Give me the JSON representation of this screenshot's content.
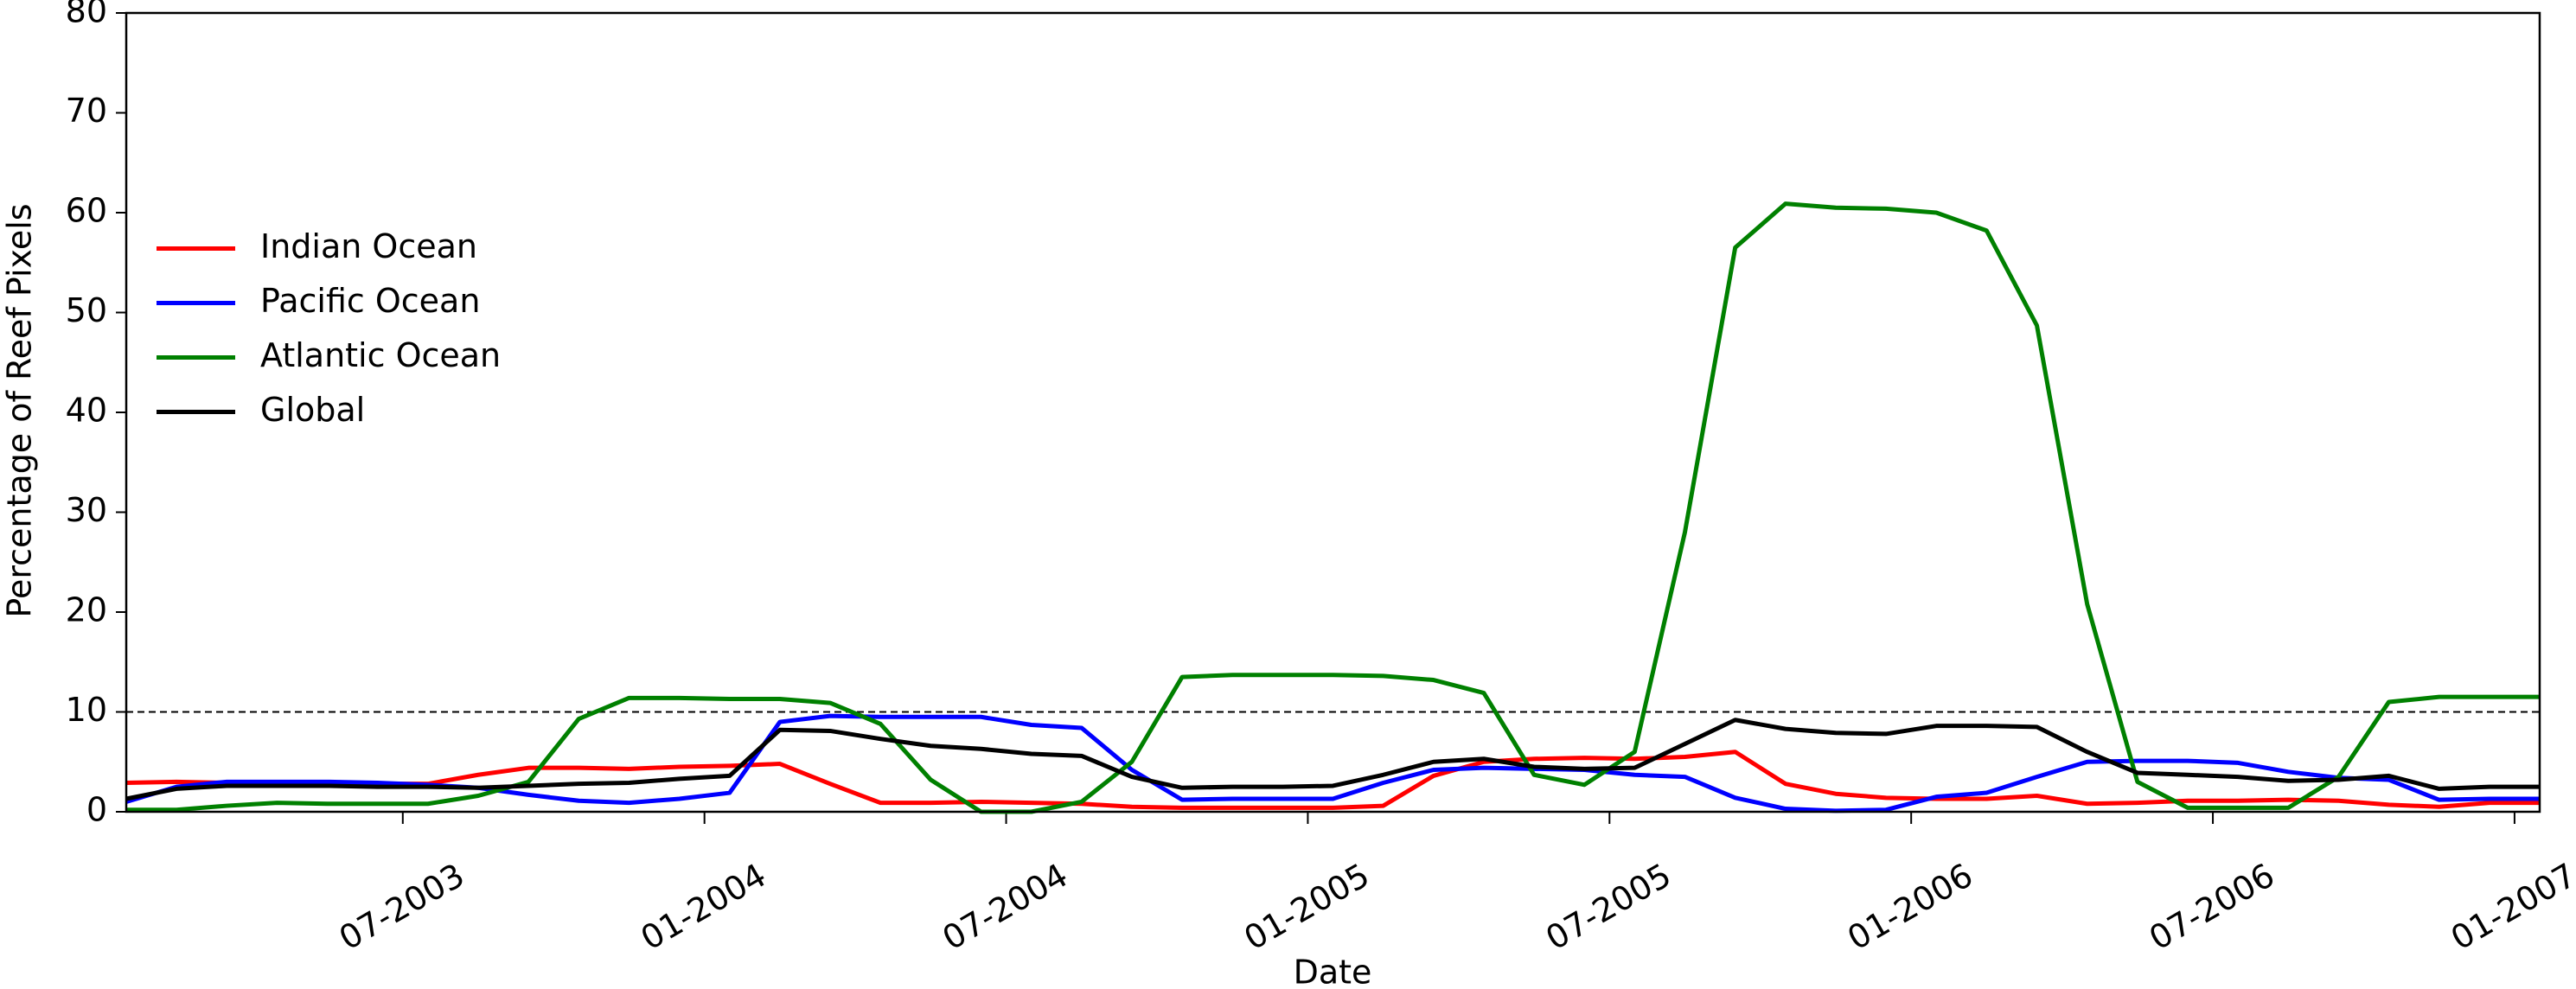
{
  "chart_data": {
    "type": "line",
    "y_label": "Percentage of Reef Pixels",
    "x_label": "Date",
    "x": [
      "01-2003",
      "02-2003",
      "03-2003",
      "04-2003",
      "05-2003",
      "06-2003",
      "07-2003",
      "08-2003",
      "09-2003",
      "10-2003",
      "11-2003",
      "12-2003",
      "01-2004",
      "02-2004",
      "03-2004",
      "04-2004",
      "05-2004",
      "06-2004",
      "07-2004",
      "08-2004",
      "09-2004",
      "10-2004",
      "11-2004",
      "12-2004",
      "01-2005",
      "02-2005",
      "03-2005",
      "04-2005",
      "05-2005",
      "06-2005",
      "07-2005",
      "08-2005",
      "09-2005",
      "10-2005",
      "11-2005",
      "12-2005",
      "01-2006",
      "02-2006",
      "03-2006",
      "04-2006",
      "05-2006",
      "06-2006",
      "07-2006",
      "08-2006",
      "09-2006",
      "10-2006",
      "11-2006",
      "12-2006",
      "01-2007"
    ],
    "series": [
      {
        "name": "Indian Ocean",
        "color": "#ff0000",
        "values": [
          2.9,
          3,
          2.9,
          2.8,
          2.8,
          2.8,
          2.8,
          3.7,
          4.4,
          4.4,
          4.3,
          4.5,
          4.6,
          4.8,
          2.8,
          0.9,
          0.9,
          1,
          0.9,
          0.8,
          0.5,
          0.4,
          0.4,
          0.4,
          0.4,
          0.6,
          3.6,
          5,
          5.3,
          5.4,
          5.3,
          5.5,
          6,
          2.8,
          1.8,
          1.4,
          1.3,
          1.3,
          1.6,
          0.8,
          0.9,
          1.1,
          1.1,
          1.2,
          1.1,
          0.7,
          0.5,
          0.9,
          0.9
        ]
      },
      {
        "name": "Pacific Ocean",
        "color": "#0000ff",
        "values": [
          1,
          2.5,
          3,
          3,
          3,
          2.9,
          2.7,
          2.4,
          1.7,
          1.1,
          0.9,
          1.3,
          1.9,
          9,
          9.6,
          9.5,
          9.5,
          9.5,
          8.7,
          8.4,
          4.2,
          1.2,
          1.3,
          1.3,
          1.3,
          2.9,
          4.2,
          4.4,
          4.3,
          4.2,
          3.7,
          3.5,
          1.4,
          0.3,
          0.1,
          0.2,
          1.5,
          1.9,
          3.5,
          5,
          5.1,
          5.1,
          4.9,
          4,
          3.4,
          3.2,
          1.2,
          1.3,
          1.3
        ]
      },
      {
        "name": "Atlantic Ocean",
        "color": "#008000",
        "values": [
          0.2,
          0.2,
          0.6,
          0.9,
          0.8,
          0.8,
          0.8,
          1.6,
          3,
          9.3,
          11.4,
          11.4,
          11.3,
          11.3,
          10.9,
          8.8,
          3.2,
          0,
          0,
          1,
          5,
          13.5,
          13.7,
          13.7,
          13.7,
          13.6,
          13.2,
          11.9,
          3.7,
          2.7,
          6,
          28,
          56.5,
          60.9,
          60.5,
          60.4,
          60,
          58.2,
          48.7,
          20.8,
          3,
          0.4,
          0.4,
          0.4,
          3.5,
          11,
          11.5,
          11.5,
          11.5
        ]
      },
      {
        "name": "Global",
        "color": "#000000",
        "values": [
          1.3,
          2.3,
          2.6,
          2.6,
          2.6,
          2.5,
          2.5,
          2.4,
          2.6,
          2.8,
          2.9,
          3.3,
          3.6,
          8.2,
          8.1,
          7.3,
          6.6,
          6.3,
          5.8,
          5.6,
          3.5,
          2.4,
          2.5,
          2.5,
          2.6,
          3.7,
          5,
          5.3,
          4.5,
          4.3,
          4.4,
          6.8,
          9.2,
          8.3,
          7.9,
          7.8,
          8.6,
          8.6,
          8.5,
          6,
          3.9,
          3.7,
          3.5,
          3.1,
          3.2,
          3.6,
          2.3,
          2.5,
          2.5
        ]
      }
    ],
    "reference_line": 10,
    "xlim": [
      "01-2003",
      "01-2007"
    ],
    "xticks": [
      "07-2003",
      "01-2004",
      "07-2004",
      "01-2005",
      "07-2005",
      "01-2006",
      "07-2006",
      "01-2007"
    ],
    "ylim": [
      0,
      80
    ],
    "yticks": [
      0,
      10,
      20,
      30,
      40,
      50,
      60,
      70,
      80
    ],
    "legend": "center left",
    "grid": false
  }
}
